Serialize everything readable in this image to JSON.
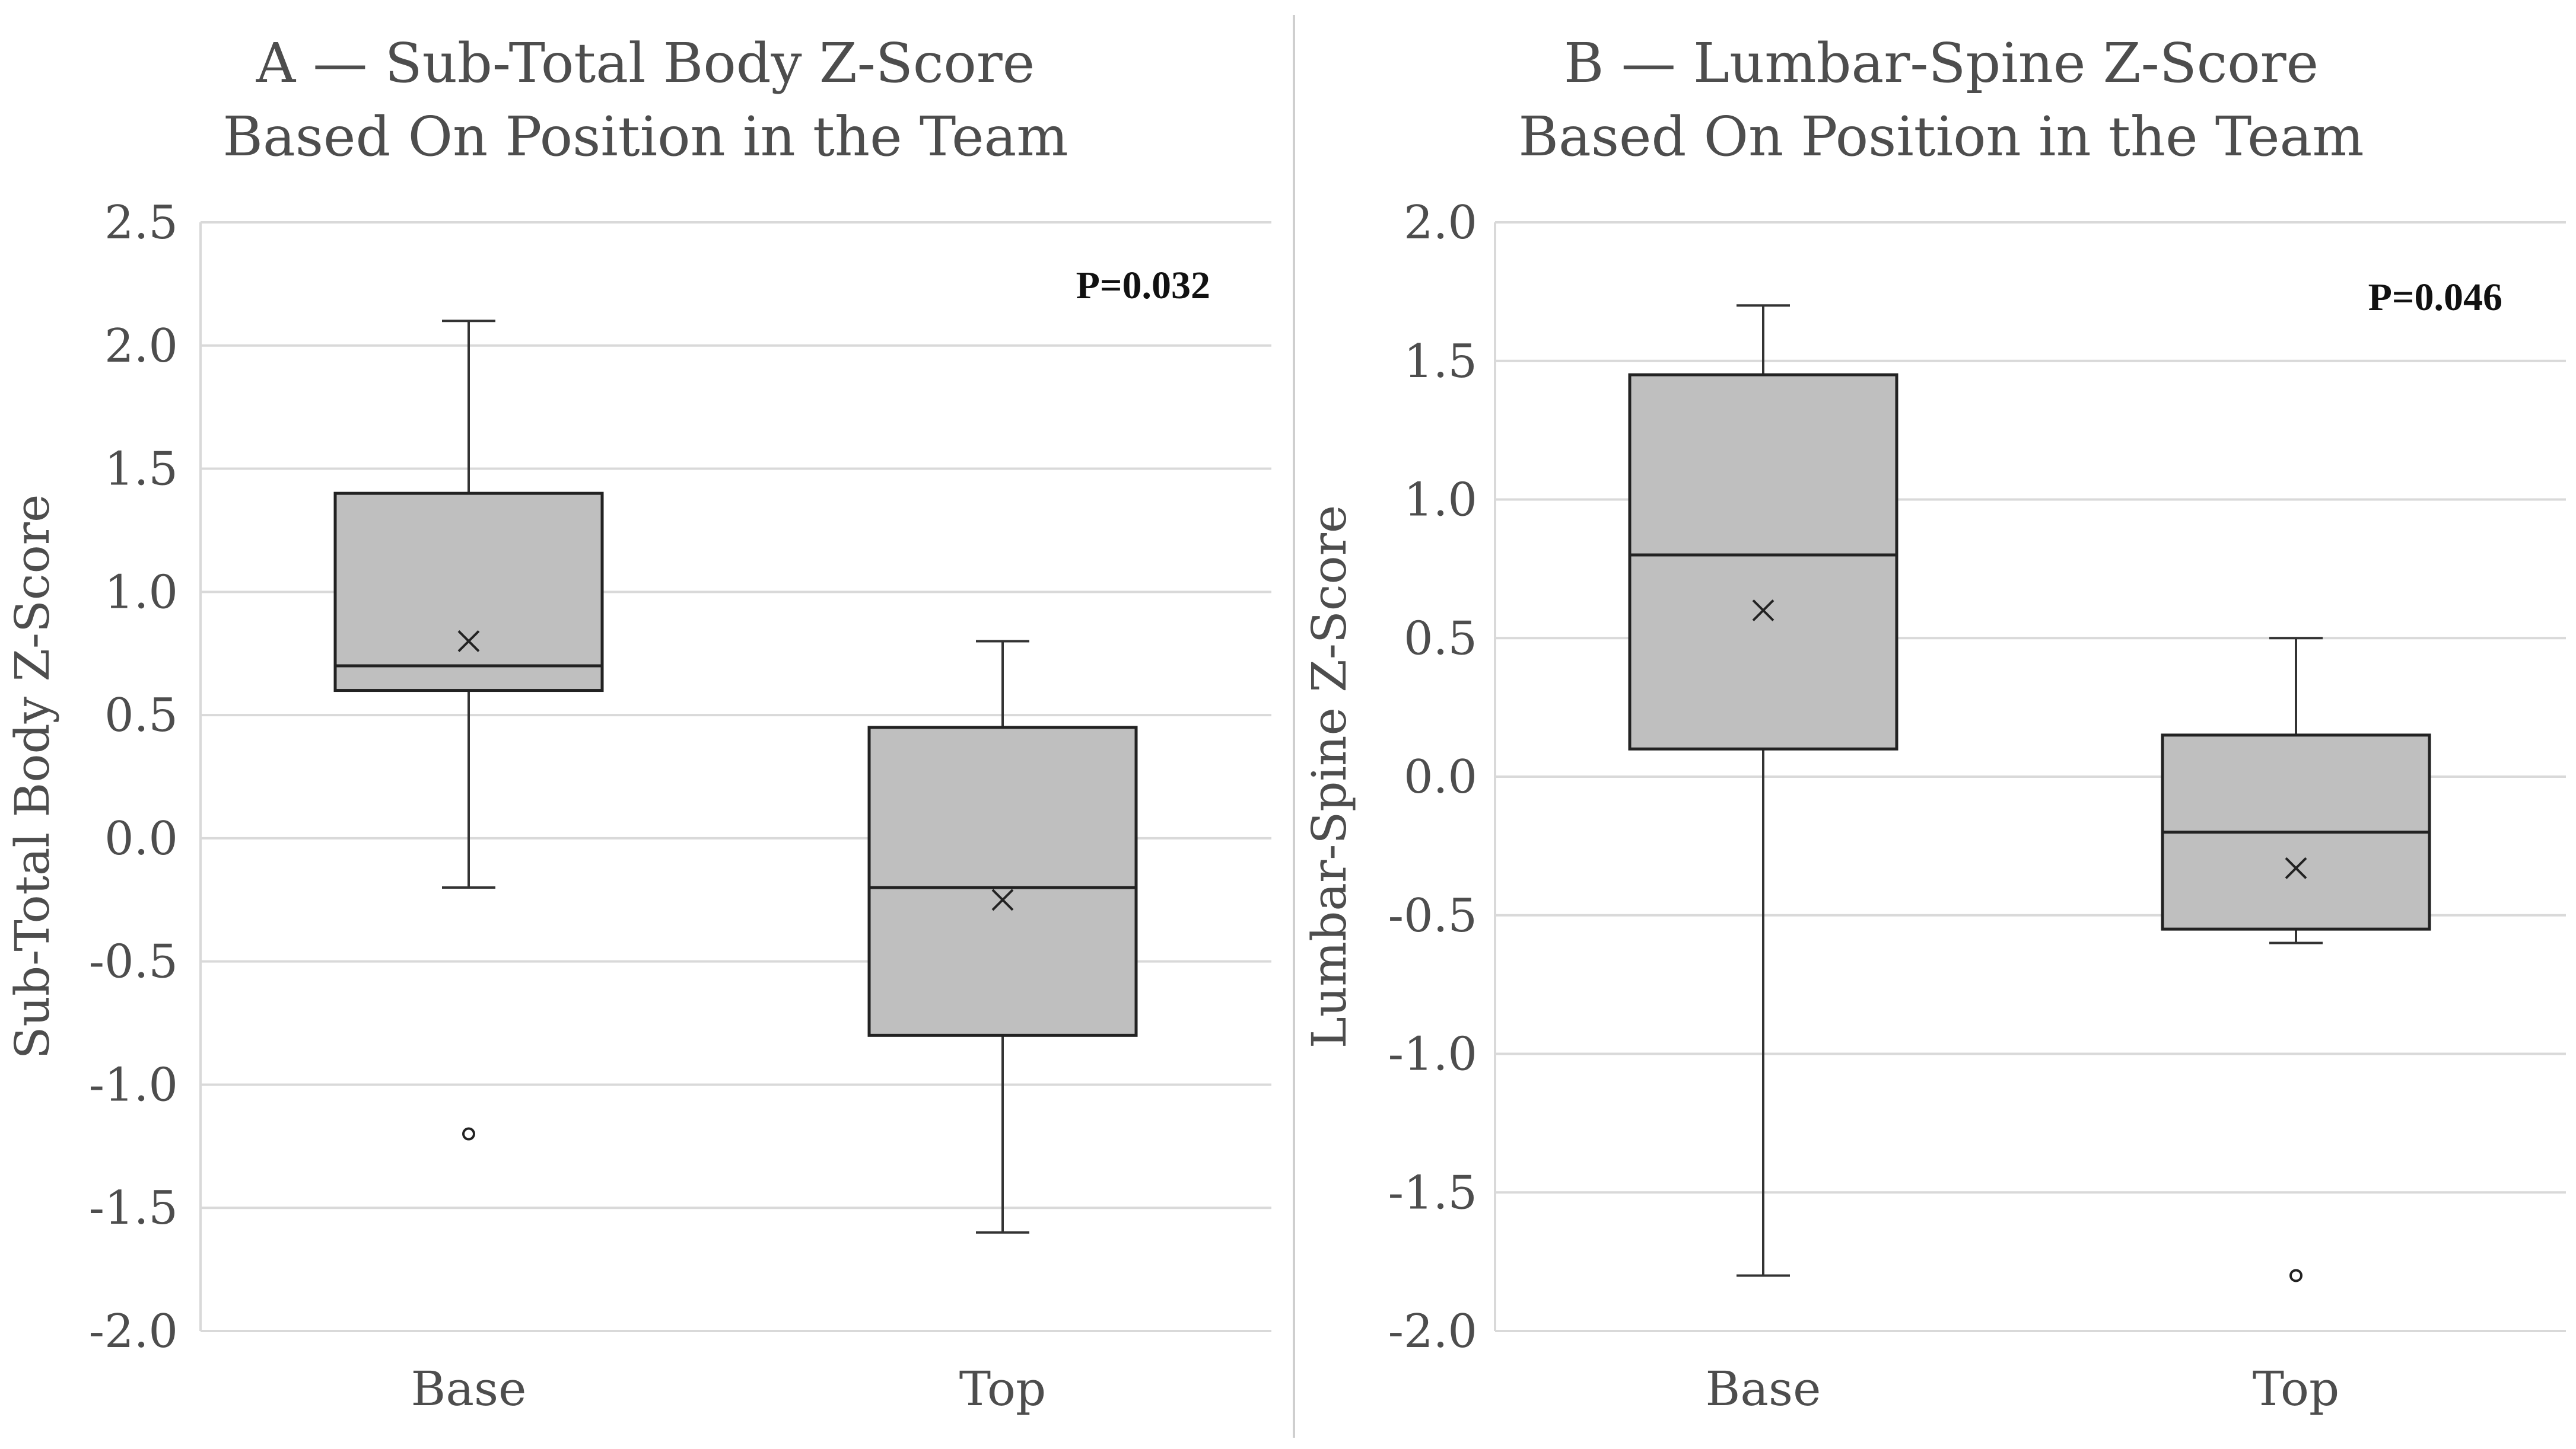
{
  "chart_data": [
    {
      "type": "boxplot",
      "panel": "A",
      "title_line1": "A — Sub-Total Body Z-Score",
      "title_line2": "Based On Position in the Team",
      "ylabel": "Sub-Total Body Z-Score",
      "xlabel": "",
      "ylim": [
        -2.0,
        2.5
      ],
      "yticks": [
        2.5,
        2.0,
        1.5,
        1.0,
        0.5,
        0.0,
        -0.5,
        -1.0,
        -1.5,
        -2.0
      ],
      "ytick_labels": [
        "2.5",
        "2.0",
        "1.5",
        "1.0",
        "0.5",
        "0.0",
        "-0.5",
        "-1.0",
        "-1.5",
        "-2.0"
      ],
      "grid": true,
      "annotation": "P=0.032",
      "categories": [
        "Base",
        "Top"
      ],
      "boxes": [
        {
          "name": "Base",
          "whisker_low": -0.2,
          "q1": 0.6,
          "median": 0.7,
          "q3": 1.4,
          "whisker_high": 2.1,
          "mean": 0.8,
          "outliers": [
            -1.2
          ]
        },
        {
          "name": "Top",
          "whisker_low": -1.6,
          "q1": -0.8,
          "median": -0.2,
          "q3": 0.45,
          "whisker_high": 0.8,
          "mean": -0.25,
          "outliers": []
        }
      ],
      "box_fill": "#bfbfbf"
    },
    {
      "type": "boxplot",
      "panel": "B",
      "title_line1": "B — Lumbar-Spine Z-Score",
      "title_line2": "Based On Position in the Team",
      "ylabel": "Lumbar-Spine Z-Score",
      "xlabel": "",
      "ylim": [
        -2.0,
        2.0
      ],
      "yticks": [
        2.0,
        1.5,
        1.0,
        0.5,
        0.0,
        -0.5,
        -1.0,
        -1.5,
        -2.0
      ],
      "ytick_labels": [
        "2.0",
        "1.5",
        "1.0",
        "0.5",
        "0.0",
        "-0.5",
        "-1.0",
        "-1.5",
        "-2.0"
      ],
      "grid": true,
      "annotation": "P=0.046",
      "categories": [
        "Base",
        "Top"
      ],
      "boxes": [
        {
          "name": "Base",
          "whisker_low": -1.8,
          "q1": 0.1,
          "median": 0.8,
          "q3": 1.45,
          "whisker_high": 1.7,
          "mean": 0.6,
          "outliers": []
        },
        {
          "name": "Top",
          "whisker_low": -0.6,
          "q1": -0.55,
          "median": -0.2,
          "q3": 0.15,
          "whisker_high": 0.5,
          "mean": -0.33,
          "outliers": [
            -1.8
          ]
        }
      ],
      "box_fill": "#bfbfbf"
    }
  ]
}
